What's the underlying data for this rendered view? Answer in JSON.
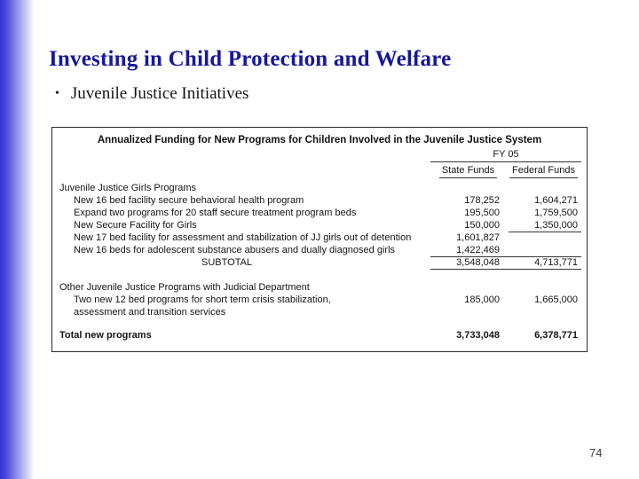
{
  "theme": {
    "title_color": "#17179e",
    "accent_bar_blue": "#3535d6",
    "table_border_color": "#2b2b2b"
  },
  "slide": {
    "title": "Investing in Child Protection and Welfare",
    "bullet_glyph": "•",
    "bullet_text": "Juvenile Justice Initiatives",
    "page_number": "74"
  },
  "table": {
    "title": "Annualized Funding for New Programs for Children Involved in the Juvenile Justice System",
    "fiscal_year_label": "FY 05",
    "column_headers": {
      "state": "State Funds",
      "federal": "Federal Funds"
    },
    "rows": [
      {
        "label": "Juvenile Justice Girls Programs",
        "indent": 0,
        "state": "",
        "federal": ""
      },
      {
        "label": "New 16 bed facility secure behavioral health program",
        "indent": 1,
        "state": "178,252",
        "federal": "1,604,271"
      },
      {
        "label": "Expand two programs for 20 staff secure treatment program beds",
        "indent": 1,
        "state": "195,500",
        "federal": "1,759,500"
      },
      {
        "label": "New Secure Facility for Girls",
        "indent": 1,
        "state": "150,000",
        "federal": "1,350,000",
        "rule_federal_below": true
      },
      {
        "label": "New 17 bed facility for assessment and stabilization of JJ girls out of detention",
        "indent": 1,
        "state": "1,601,827",
        "federal": ""
      },
      {
        "label": "New 16 beds for adolescent substance abusers and dually diagnosed girls",
        "indent": 1,
        "state": "1,422,469",
        "federal": "",
        "rule_numbers_below": true
      },
      {
        "label": "SUBTOTAL",
        "indent": "subtotal",
        "state": "3,548,048",
        "federal": "4,713,771",
        "rule_numbers_below": true
      },
      {
        "spacer": 14
      },
      {
        "label": "Other Juvenile Justice Programs with Judicial Department",
        "indent": 0,
        "state": "",
        "federal": ""
      },
      {
        "label": "Two new 12 bed programs for short term crisis stabilization,",
        "indent": 1,
        "state": "185,000",
        "federal": "1,665,000"
      },
      {
        "label": "assessment and transition services",
        "indent": 1,
        "state": "",
        "federal": ""
      },
      {
        "spacer": 12
      },
      {
        "label": "Total new programs",
        "indent": 0,
        "bold": true,
        "state": "3,733,048",
        "federal": "6,378,771"
      }
    ]
  }
}
